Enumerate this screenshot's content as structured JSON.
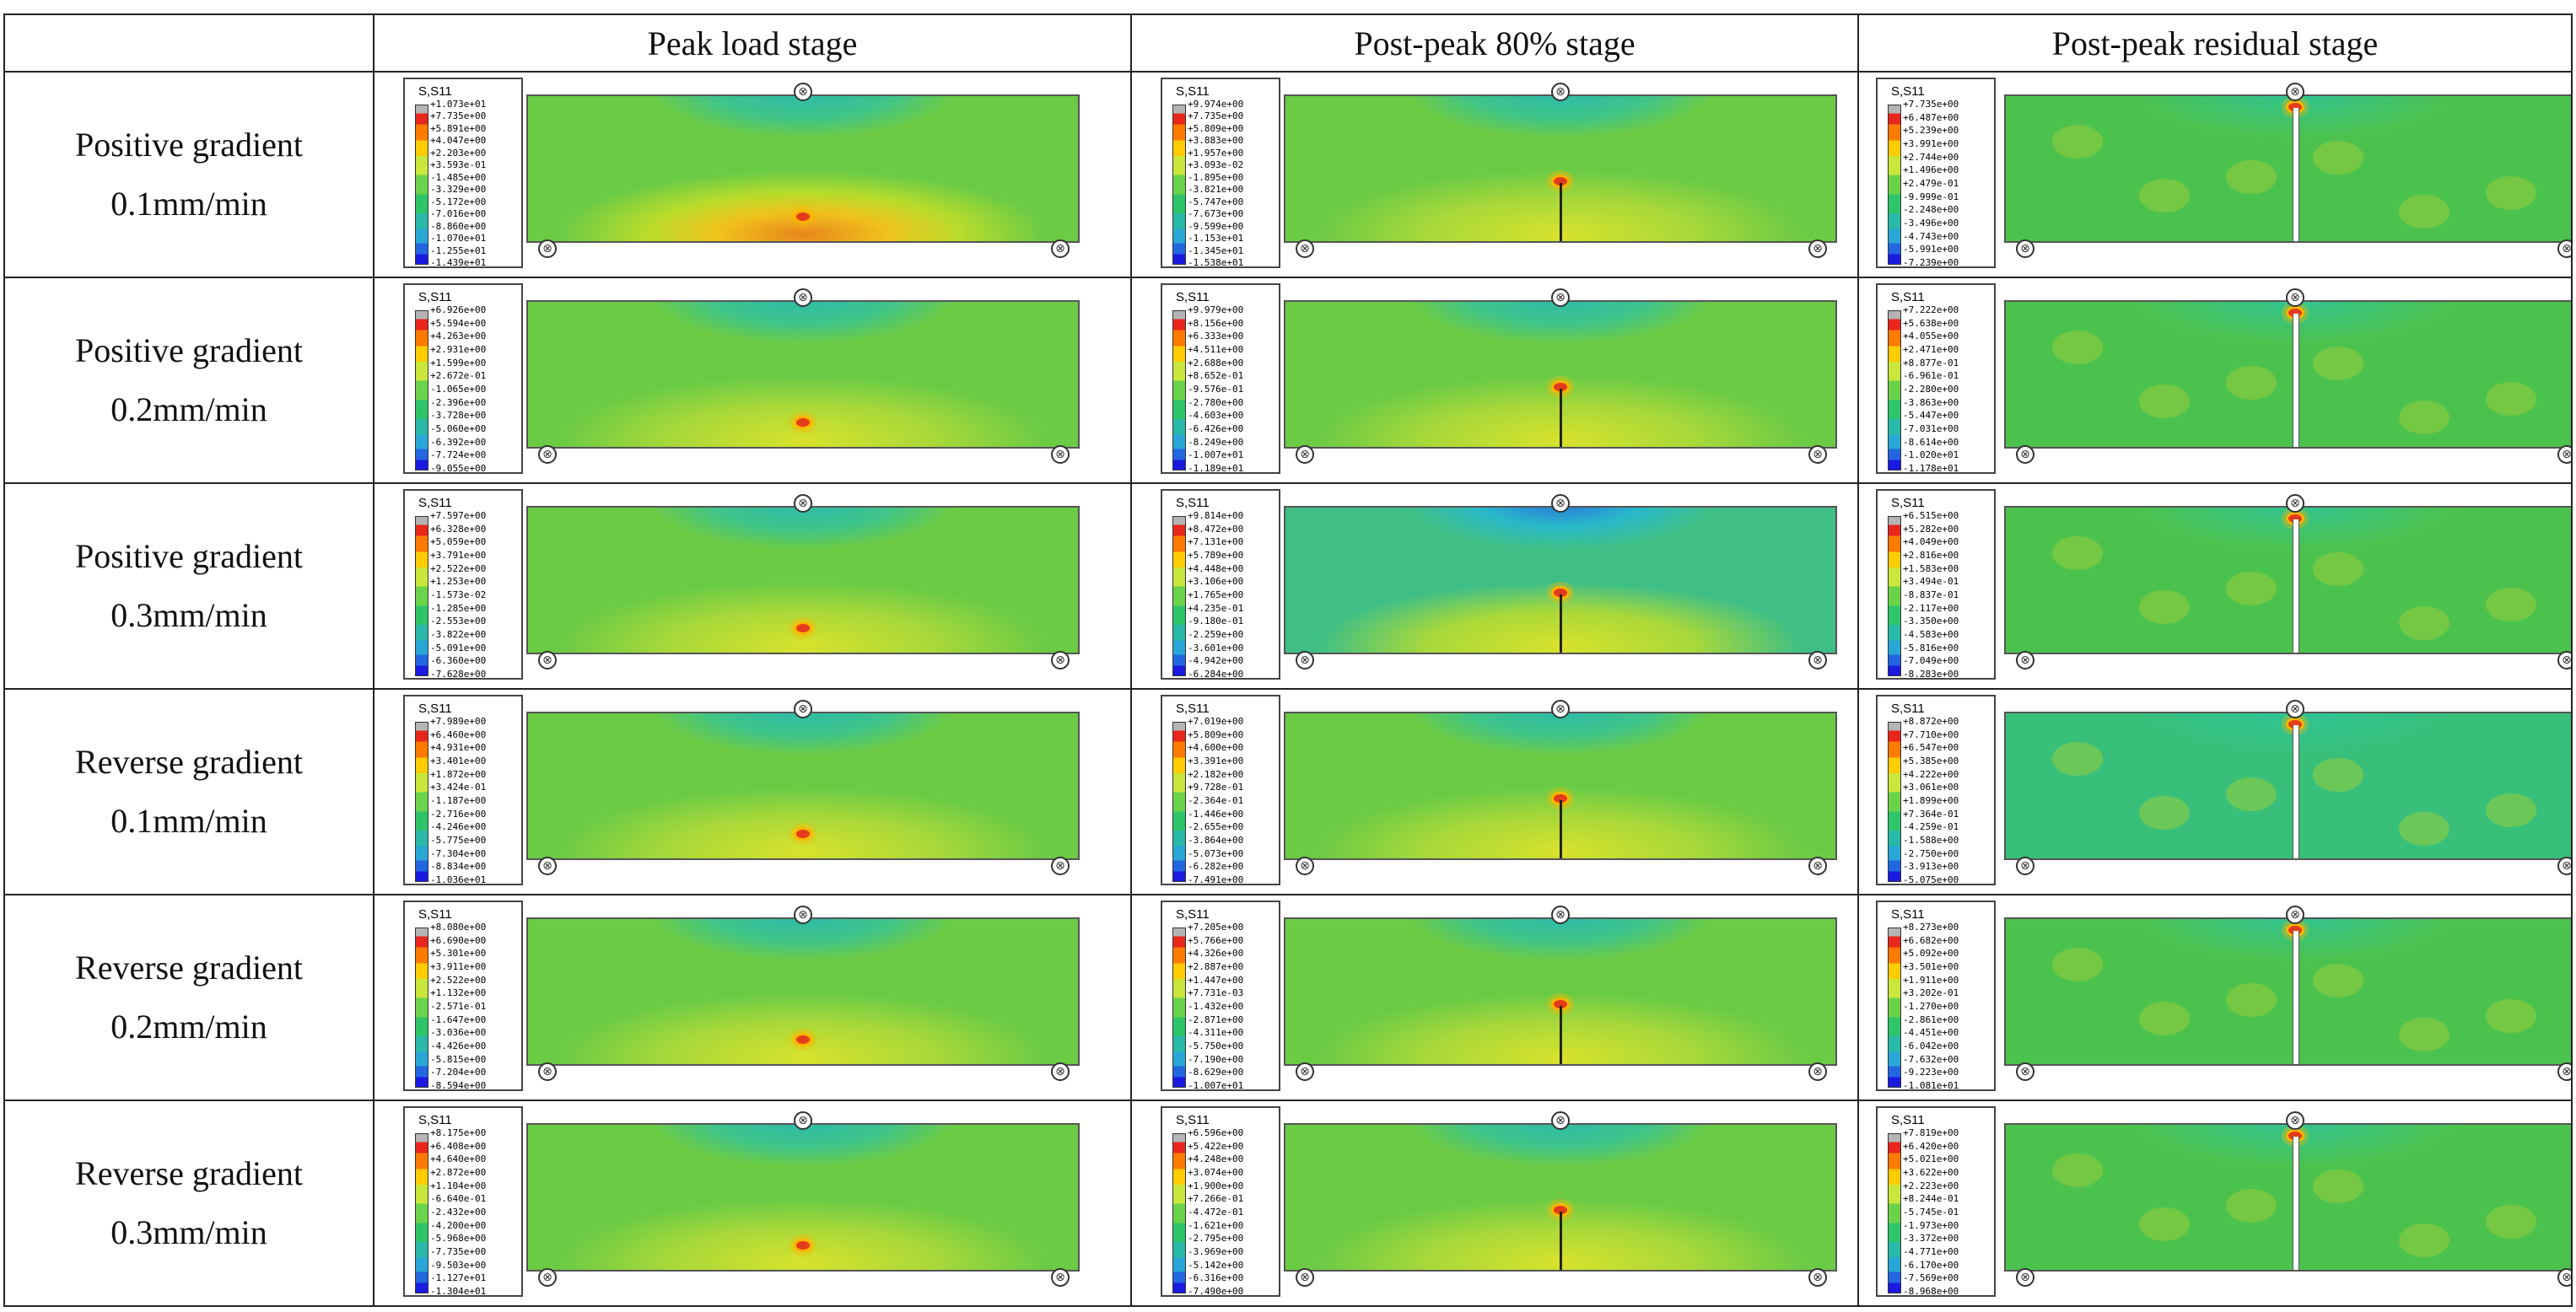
{
  "columns": [
    "Peak load stage",
    "Post-peak 80% stage",
    "Post-peak residual stage"
  ],
  "legend_title": "S,S11",
  "colors": {
    "high": "#e8261c",
    "mid": "#6ad34a",
    "low": "#1a1ae0",
    "background_green": "#58c24a"
  },
  "rows": [
    {
      "label_line1": "Positive gradient",
      "label_line2": "0.1mm/min",
      "cells": [
        {
          "values": [
            "+1.073e+01",
            "+7.735e+00",
            "+5.891e+00",
            "+4.047e+00",
            "+2.203e+00",
            "+3.593e-01",
            "-1.485e+00",
            "-3.329e+00",
            "-5.172e+00",
            "-7.016e+00",
            "-8.860e+00",
            "-1.070e+01",
            "-1.255e+01",
            "-1.439e+01"
          ]
        },
        {
          "values": [
            "+9.974e+00",
            "+7.735e+00",
            "+5.809e+00",
            "+3.883e+00",
            "+1.957e+00",
            "+3.093e-02",
            "-1.895e+00",
            "-3.821e+00",
            "-5.747e+00",
            "-7.673e+00",
            "-9.599e+00",
            "-1.153e+01",
            "-1.345e+01",
            "-1.538e+01"
          ]
        },
        {
          "values": [
            "+7.735e+00",
            "+6.487e+00",
            "+5.239e+00",
            "+3.991e+00",
            "+2.744e+00",
            "+1.496e+00",
            "+2.479e-01",
            "-9.999e-01",
            "-2.248e+00",
            "-3.496e+00",
            "-4.743e+00",
            "-5.991e+00",
            "-7.239e+00"
          ]
        }
      ]
    },
    {
      "label_line1": "Positive gradient",
      "label_line2": "0.2mm/min",
      "cells": [
        {
          "values": [
            "+6.926e+00",
            "+5.594e+00",
            "+4.263e+00",
            "+2.931e+00",
            "+1.599e+00",
            "+2.672e-01",
            "-1.065e+00",
            "-2.396e+00",
            "-3.728e+00",
            "-5.060e+00",
            "-6.392e+00",
            "-7.724e+00",
            "-9.055e+00"
          ]
        },
        {
          "values": [
            "+9.979e+00",
            "+8.156e+00",
            "+6.333e+00",
            "+4.511e+00",
            "+2.688e+00",
            "+8.652e-01",
            "-9.576e-01",
            "-2.780e+00",
            "-4.603e+00",
            "-6.426e+00",
            "-8.249e+00",
            "-1.007e+01",
            "-1.189e+01"
          ]
        },
        {
          "values": [
            "+7.222e+00",
            "+5.638e+00",
            "+4.055e+00",
            "+2.471e+00",
            "+8.877e-01",
            "-6.961e-01",
            "-2.280e+00",
            "-3.863e+00",
            "-5.447e+00",
            "-7.031e+00",
            "-8.614e+00",
            "-1.020e+01",
            "-1.178e+01"
          ]
        }
      ]
    },
    {
      "label_line1": "Positive gradient",
      "label_line2": "0.3mm/min",
      "cells": [
        {
          "values": [
            "+7.597e+00",
            "+6.328e+00",
            "+5.059e+00",
            "+3.791e+00",
            "+2.522e+00",
            "+1.253e+00",
            "-1.573e-02",
            "-1.285e+00",
            "-2.553e+00",
            "-3.822e+00",
            "-5.091e+00",
            "-6.360e+00",
            "-7.628e+00"
          ]
        },
        {
          "values": [
            "+9.814e+00",
            "+8.472e+00",
            "+7.131e+00",
            "+5.789e+00",
            "+4.448e+00",
            "+3.106e+00",
            "+1.765e+00",
            "+4.235e-01",
            "-9.180e-01",
            "-2.259e+00",
            "-3.601e+00",
            "-4.942e+00",
            "-6.284e+00"
          ]
        },
        {
          "values": [
            "+6.515e+00",
            "+5.282e+00",
            "+4.049e+00",
            "+2.816e+00",
            "+1.583e+00",
            "+3.494e-01",
            "-8.837e-01",
            "-2.117e+00",
            "-3.350e+00",
            "-4.583e+00",
            "-5.816e+00",
            "-7.049e+00",
            "-8.283e+00"
          ]
        }
      ]
    },
    {
      "label_line1": "Reverse gradient",
      "label_line2": "0.1mm/min",
      "cells": [
        {
          "values": [
            "+7.989e+00",
            "+6.460e+00",
            "+4.931e+00",
            "+3.401e+00",
            "+1.872e+00",
            "+3.424e-01",
            "-1.187e+00",
            "-2.716e+00",
            "-4.246e+00",
            "-5.775e+00",
            "-7.304e+00",
            "-8.834e+00",
            "-1.036e+01"
          ]
        },
        {
          "values": [
            "+7.019e+00",
            "+5.809e+00",
            "+4.600e+00",
            "+3.391e+00",
            "+2.182e+00",
            "+9.728e-01",
            "-2.364e-01",
            "-1.446e+00",
            "-2.655e+00",
            "-3.864e+00",
            "-5.073e+00",
            "-6.282e+00",
            "-7.491e+00"
          ]
        },
        {
          "values": [
            "+8.872e+00",
            "+7.710e+00",
            "+6.547e+00",
            "+5.385e+00",
            "+4.222e+00",
            "+3.061e+00",
            "+1.899e+00",
            "+7.364e-01",
            "-4.259e-01",
            "-1.588e+00",
            "-2.750e+00",
            "-3.913e+00",
            "-5.075e+00"
          ]
        }
      ]
    },
    {
      "label_line1": "Reverse gradient",
      "label_line2": "0.2mm/min",
      "cells": [
        {
          "values": [
            "+8.080e+00",
            "+6.690e+00",
            "+5.301e+00",
            "+3.911e+00",
            "+2.522e+00",
            "+1.132e+00",
            "-2.571e-01",
            "-1.647e+00",
            "-3.036e+00",
            "-4.426e+00",
            "-5.815e+00",
            "-7.204e+00",
            "-8.594e+00"
          ]
        },
        {
          "values": [
            "+7.205e+00",
            "+5.766e+00",
            "+4.326e+00",
            "+2.887e+00",
            "+1.447e+00",
            "+7.731e-03",
            "-1.432e+00",
            "-2.871e+00",
            "-4.311e+00",
            "-5.750e+00",
            "-7.190e+00",
            "-8.629e+00",
            "-1.007e+01"
          ]
        },
        {
          "values": [
            "+8.273e+00",
            "+6.682e+00",
            "+5.092e+00",
            "+3.501e+00",
            "+1.911e+00",
            "+3.202e-01",
            "-1.270e+00",
            "-2.861e+00",
            "-4.451e+00",
            "-6.042e+00",
            "-7.632e+00",
            "-9.223e+00",
            "-1.081e+01"
          ]
        }
      ]
    },
    {
      "label_line1": "Reverse gradient",
      "label_line2": "0.3mm/min",
      "cells": [
        {
          "values": [
            "+8.175e+00",
            "+6.408e+00",
            "+4.640e+00",
            "+2.872e+00",
            "+1.104e+00",
            "-6.640e-01",
            "-2.432e+00",
            "-4.200e+00",
            "-5.968e+00",
            "-7.735e+00",
            "-9.503e+00",
            "-1.127e+01",
            "-1.304e+01"
          ]
        },
        {
          "values": [
            "+6.596e+00",
            "+5.422e+00",
            "+4.248e+00",
            "+3.074e+00",
            "+1.900e+00",
            "+7.266e-01",
            "-4.472e-01",
            "-1.621e+00",
            "-2.795e+00",
            "-3.969e+00",
            "-5.142e+00",
            "-6.316e+00",
            "-7.490e+00"
          ]
        },
        {
          "values": [
            "+7.819e+00",
            "+6.420e+00",
            "+5.021e+00",
            "+3.622e+00",
            "+2.223e+00",
            "+8.244e-01",
            "-5.745e-01",
            "-1.973e+00",
            "-3.372e+00",
            "-4.771e+00",
            "-6.170e+00",
            "-7.569e+00",
            "-8.968e+00"
          ]
        }
      ]
    }
  ]
}
